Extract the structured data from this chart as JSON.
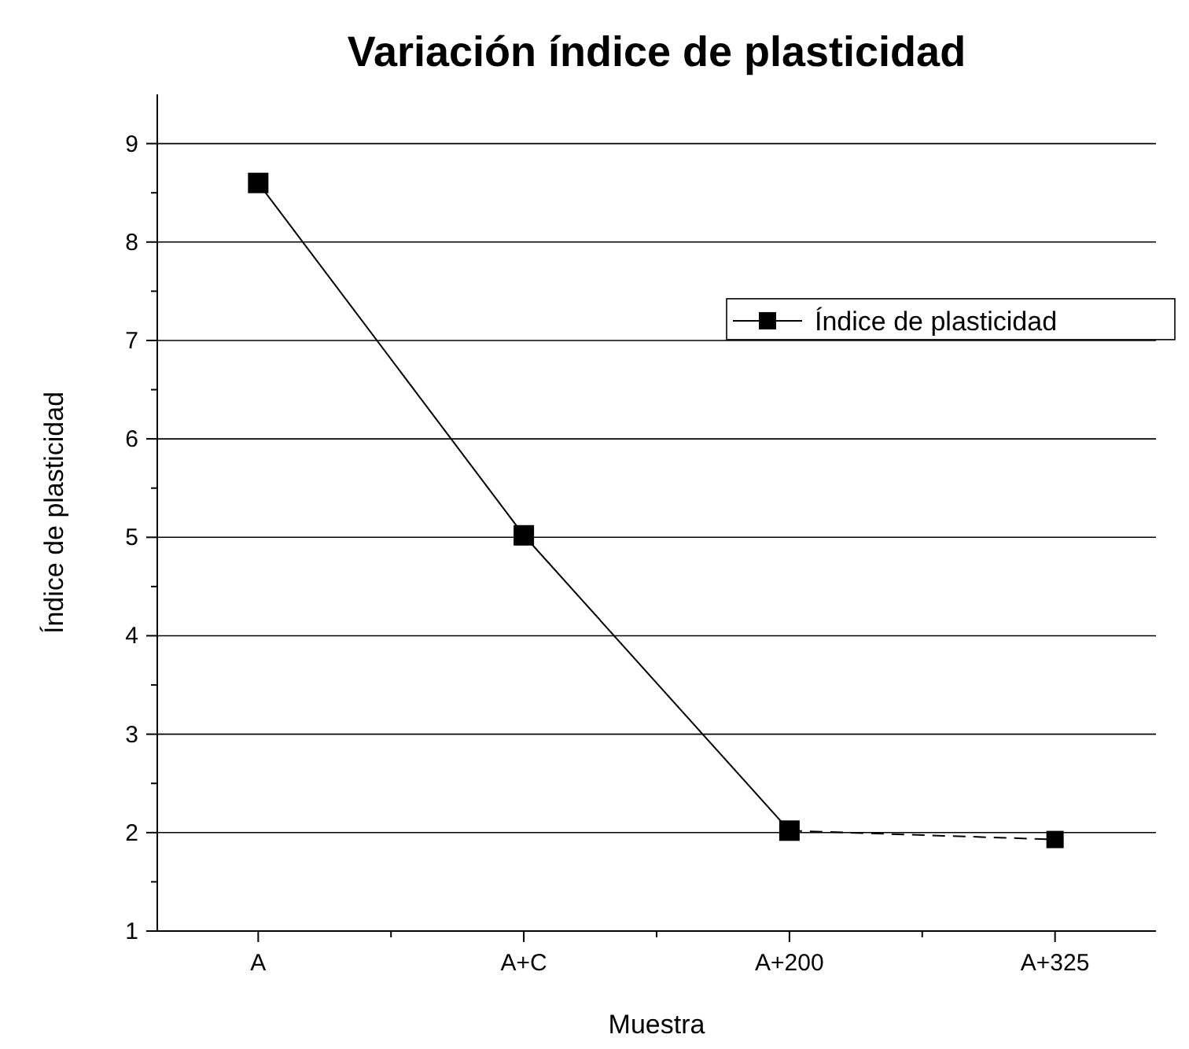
{
  "chart_data": {
    "type": "line",
    "title": "Variación índice de plasticidad",
    "xlabel": "Muestra",
    "ylabel": "Índice de plasticidad",
    "categories": [
      "A",
      "A+C",
      "A+200",
      "A+325"
    ],
    "series": [
      {
        "name": "Índice de plasticidad",
        "color": "#000000",
        "values": [
          8.6,
          5.02,
          2.02,
          null
        ],
        "line_style": "solid"
      },
      {
        "color": "#000000",
        "values": [
          null,
          null,
          2.02,
          1.93
        ],
        "line_style": "dashed"
      }
    ],
    "ylim": [
      1,
      9.5
    ],
    "yticks": [
      1,
      2,
      3,
      4,
      5,
      6,
      7,
      8,
      9
    ],
    "grid": "y",
    "legend": "right",
    "marker": "square"
  }
}
